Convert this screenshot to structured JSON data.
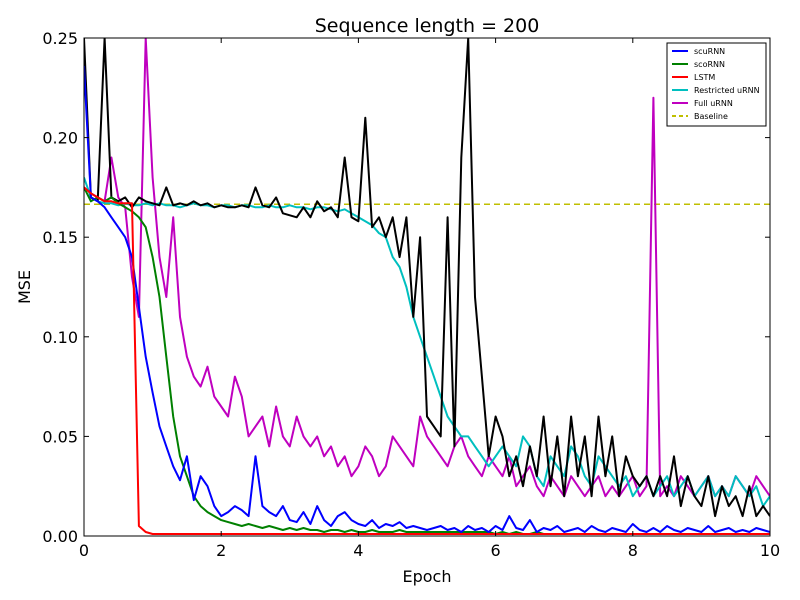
{
  "chart_data": {
    "type": "line",
    "title": "Sequence length = 200",
    "xlabel": "Epoch",
    "ylabel": "MSE",
    "xlim": [
      0,
      10
    ],
    "ylim": [
      0,
      0.25
    ],
    "x_ticks": [
      "0",
      "2",
      "4",
      "6",
      "8",
      "10"
    ],
    "y_ticks": [
      "0.00",
      "0.05",
      "0.10",
      "0.15",
      "0.20",
      "0.25"
    ],
    "grid": false,
    "legend_position": "top-right",
    "x": [
      0,
      0.1,
      0.2,
      0.3,
      0.4,
      0.5,
      0.6,
      0.7,
      0.8,
      0.9,
      1.0,
      1.1,
      1.2,
      1.3,
      1.4,
      1.5,
      1.6,
      1.7,
      1.8,
      1.9,
      2.0,
      2.1,
      2.2,
      2.3,
      2.4,
      2.5,
      2.6,
      2.7,
      2.8,
      2.9,
      3.0,
      3.1,
      3.2,
      3.3,
      3.4,
      3.5,
      3.6,
      3.7,
      3.8,
      3.9,
      4.0,
      4.1,
      4.2,
      4.3,
      4.4,
      4.5,
      4.6,
      4.7,
      4.8,
      4.9,
      5.0,
      5.1,
      5.2,
      5.3,
      5.4,
      5.5,
      5.6,
      5.7,
      5.8,
      5.9,
      6.0,
      6.1,
      6.2,
      6.3,
      6.4,
      6.5,
      6.6,
      6.7,
      6.8,
      6.9,
      7.0,
      7.1,
      7.2,
      7.3,
      7.4,
      7.5,
      7.6,
      7.7,
      7.8,
      7.9,
      8.0,
      8.1,
      8.2,
      8.3,
      8.4,
      8.5,
      8.6,
      8.7,
      8.8,
      8.9,
      9.0,
      9.1,
      9.2,
      9.3,
      9.4,
      9.5,
      9.6,
      9.7,
      9.8,
      9.9,
      10.0
    ],
    "series": [
      {
        "name": "scuRNN",
        "color": "#0000ff",
        "dashed": false,
        "values": [
          0.236,
          0.17,
          0.168,
          0.165,
          0.16,
          0.155,
          0.15,
          0.14,
          0.115,
          0.09,
          0.072,
          0.055,
          0.045,
          0.035,
          0.028,
          0.04,
          0.018,
          0.03,
          0.025,
          0.015,
          0.01,
          0.012,
          0.015,
          0.013,
          0.01,
          0.04,
          0.015,
          0.012,
          0.01,
          0.015,
          0.008,
          0.007,
          0.012,
          0.006,
          0.015,
          0.008,
          0.005,
          0.01,
          0.012,
          0.008,
          0.006,
          0.005,
          0.008,
          0.004,
          0.006,
          0.005,
          0.007,
          0.004,
          0.005,
          0.004,
          0.003,
          0.004,
          0.005,
          0.003,
          0.004,
          0.002,
          0.005,
          0.003,
          0.004,
          0.002,
          0.005,
          0.003,
          0.01,
          0.004,
          0.003,
          0.008,
          0.002,
          0.004,
          0.003,
          0.005,
          0.002,
          0.003,
          0.004,
          0.002,
          0.005,
          0.003,
          0.002,
          0.004,
          0.003,
          0.002,
          0.006,
          0.003,
          0.002,
          0.004,
          0.002,
          0.005,
          0.003,
          0.002,
          0.004,
          0.003,
          0.002,
          0.005,
          0.002,
          0.003,
          0.004,
          0.002,
          0.003,
          0.002,
          0.004,
          0.003,
          0.002
        ]
      },
      {
        "name": "scoRNN",
        "color": "#008000",
        "dashed": false,
        "values": [
          0.175,
          0.168,
          0.17,
          0.168,
          0.17,
          0.167,
          0.165,
          0.163,
          0.16,
          0.155,
          0.14,
          0.12,
          0.09,
          0.06,
          0.04,
          0.03,
          0.02,
          0.015,
          0.012,
          0.01,
          0.008,
          0.007,
          0.006,
          0.005,
          0.006,
          0.005,
          0.004,
          0.005,
          0.004,
          0.003,
          0.004,
          0.003,
          0.004,
          0.003,
          0.003,
          0.002,
          0.003,
          0.003,
          0.002,
          0.003,
          0.002,
          0.002,
          0.003,
          0.002,
          0.002,
          0.002,
          0.003,
          0.002,
          0.002,
          0.002,
          0.002,
          0.002,
          0.002,
          0.002,
          0.002,
          0.002,
          0.002,
          0.002,
          0.002,
          0.002,
          0.001,
          0.002,
          0.001,
          0.002,
          0.001,
          0.001,
          0.002,
          0.001,
          0.001,
          0.001,
          0.001,
          0.001,
          0.001,
          0.001,
          0.001,
          0.001,
          0.001,
          0.001,
          0.001,
          0.001,
          0.001,
          0.001,
          0.001,
          0.001,
          0.001,
          0.001,
          0.001,
          0.001,
          0.001,
          0.001,
          0.001,
          0.001,
          0.001,
          0.001,
          0.001,
          0.001,
          0.001,
          0.001,
          0.001,
          0.001,
          0.001
        ]
      },
      {
        "name": "LSTM",
        "color": "#ff0000",
        "dashed": false,
        "values": [
          0.175,
          0.172,
          0.17,
          0.168,
          0.168,
          0.167,
          0.167,
          0.167,
          0.005,
          0.002,
          0.001,
          0.001,
          0.001,
          0.001,
          0.001,
          0.001,
          0.001,
          0.001,
          0.001,
          0.001,
          0.001,
          0.001,
          0.001,
          0.001,
          0.001,
          0.001,
          0.001,
          0.001,
          0.001,
          0.001,
          0.001,
          0.001,
          0.001,
          0.001,
          0.001,
          0.001,
          0.001,
          0.001,
          0.001,
          0.001,
          0.001,
          0.001,
          0.001,
          0.001,
          0.001,
          0.001,
          0.001,
          0.001,
          0.001,
          0.001,
          0.001,
          0.001,
          0.001,
          0.001,
          0.001,
          0.001,
          0.001,
          0.001,
          0.001,
          0.001,
          0.001,
          0.001,
          0.001,
          0.001,
          0.001,
          0.001,
          0.001,
          0.001,
          0.001,
          0.001,
          0.001,
          0.001,
          0.001,
          0.001,
          0.001,
          0.001,
          0.001,
          0.001,
          0.001,
          0.001,
          0.001,
          0.001,
          0.001,
          0.001,
          0.001,
          0.001,
          0.001,
          0.001,
          0.001,
          0.001,
          0.001,
          0.001,
          0.001,
          0.001,
          0.001,
          0.001,
          0.001,
          0.001,
          0.001,
          0.001,
          0.001
        ]
      },
      {
        "name": "Restricted uRNN",
        "color": "#00bfbf",
        "dashed": false,
        "values": [
          0.18,
          0.17,
          0.168,
          0.167,
          0.167,
          0.166,
          0.167,
          0.166,
          0.166,
          0.167,
          0.166,
          0.167,
          0.166,
          0.166,
          0.165,
          0.166,
          0.167,
          0.166,
          0.166,
          0.165,
          0.166,
          0.166,
          0.165,
          0.166,
          0.166,
          0.165,
          0.165,
          0.166,
          0.165,
          0.165,
          0.166,
          0.165,
          0.165,
          0.164,
          0.165,
          0.165,
          0.164,
          0.163,
          0.164,
          0.162,
          0.16,
          0.158,
          0.156,
          0.152,
          0.15,
          0.14,
          0.135,
          0.125,
          0.11,
          0.1,
          0.09,
          0.08,
          0.07,
          0.06,
          0.055,
          0.05,
          0.05,
          0.045,
          0.04,
          0.035,
          0.04,
          0.045,
          0.04,
          0.035,
          0.05,
          0.045,
          0.03,
          0.025,
          0.04,
          0.035,
          0.03,
          0.045,
          0.04,
          0.03,
          0.025,
          0.04,
          0.035,
          0.03,
          0.025,
          0.03,
          0.02,
          0.025,
          0.03,
          0.02,
          0.025,
          0.03,
          0.02,
          0.025,
          0.03,
          0.02,
          0.025,
          0.03,
          0.02,
          0.025,
          0.02,
          0.03,
          0.025,
          0.02,
          0.025,
          0.015,
          0.02
        ]
      },
      {
        "name": "Full uRNN",
        "color": "#bf00bf",
        "dashed": false,
        "values": [
          0.175,
          0.172,
          0.17,
          0.168,
          0.19,
          0.17,
          0.165,
          0.13,
          0.11,
          0.25,
          0.18,
          0.14,
          0.12,
          0.16,
          0.11,
          0.09,
          0.08,
          0.075,
          0.085,
          0.07,
          0.065,
          0.06,
          0.08,
          0.07,
          0.05,
          0.055,
          0.06,
          0.045,
          0.065,
          0.05,
          0.045,
          0.06,
          0.05,
          0.045,
          0.05,
          0.04,
          0.045,
          0.035,
          0.04,
          0.03,
          0.035,
          0.045,
          0.04,
          0.03,
          0.035,
          0.05,
          0.045,
          0.04,
          0.035,
          0.06,
          0.05,
          0.045,
          0.04,
          0.035,
          0.045,
          0.05,
          0.04,
          0.035,
          0.03,
          0.04,
          0.035,
          0.03,
          0.04,
          0.025,
          0.03,
          0.035,
          0.025,
          0.02,
          0.03,
          0.025,
          0.02,
          0.03,
          0.025,
          0.02,
          0.025,
          0.03,
          0.02,
          0.025,
          0.02,
          0.025,
          0.03,
          0.02,
          0.025,
          0.22,
          0.02,
          0.025,
          0.02,
          0.03,
          0.025,
          0.02,
          0.025,
          0.03,
          0.02,
          0.025,
          0.02,
          0.03,
          0.025,
          0.02,
          0.03,
          0.025,
          0.02
        ]
      },
      {
        "name": "Baseline",
        "color": "#bfbf00",
        "dashed": true,
        "values": [
          0.1665,
          0.1665,
          0.1665,
          0.1665,
          0.1665,
          0.1665,
          0.1665,
          0.1665,
          0.1665,
          0.1665,
          0.1665,
          0.1665,
          0.1665,
          0.1665,
          0.1665,
          0.1665,
          0.1665,
          0.1665,
          0.1665,
          0.1665,
          0.1665,
          0.1665,
          0.1665,
          0.1665,
          0.1665,
          0.1665,
          0.1665,
          0.1665,
          0.1665,
          0.1665,
          0.1665,
          0.1665,
          0.1665,
          0.1665,
          0.1665,
          0.1665,
          0.1665,
          0.1665,
          0.1665,
          0.1665,
          0.1665,
          0.1665,
          0.1665,
          0.1665,
          0.1665,
          0.1665,
          0.1665,
          0.1665,
          0.1665,
          0.1665,
          0.1665,
          0.1665,
          0.1665,
          0.1665,
          0.1665,
          0.1665,
          0.1665,
          0.1665,
          0.1665,
          0.1665,
          0.1665,
          0.1665,
          0.1665,
          0.1665,
          0.1665,
          0.1665,
          0.1665,
          0.1665,
          0.1665,
          0.1665,
          0.1665,
          0.1665,
          0.1665,
          0.1665,
          0.1665,
          0.1665,
          0.1665,
          0.1665,
          0.1665,
          0.1665,
          0.1665,
          0.1665,
          0.1665,
          0.1665,
          0.1665,
          0.1665,
          0.1665,
          0.1665,
          0.1665,
          0.1665,
          0.1665,
          0.1665,
          0.1665,
          0.1665,
          0.1665,
          0.1665,
          0.1665,
          0.1665,
          0.1665,
          0.1665,
          0.1665
        ]
      },
      {
        "name": "",
        "color": "#000000",
        "dashed": false,
        "values": [
          0.25,
          0.17,
          0.168,
          0.25,
          0.17,
          0.168,
          0.17,
          0.165,
          0.17,
          0.168,
          0.167,
          0.166,
          0.175,
          0.166,
          0.167,
          0.166,
          0.168,
          0.166,
          0.167,
          0.165,
          0.166,
          0.165,
          0.165,
          0.166,
          0.165,
          0.175,
          0.166,
          0.165,
          0.17,
          0.162,
          0.161,
          0.16,
          0.165,
          0.16,
          0.168,
          0.163,
          0.165,
          0.16,
          0.19,
          0.16,
          0.158,
          0.21,
          0.155,
          0.16,
          0.15,
          0.16,
          0.14,
          0.16,
          0.11,
          0.15,
          0.06,
          0.055,
          0.05,
          0.16,
          0.045,
          0.19,
          0.25,
          0.12,
          0.08,
          0.04,
          0.06,
          0.05,
          0.03,
          0.04,
          0.025,
          0.045,
          0.03,
          0.06,
          0.025,
          0.05,
          0.02,
          0.06,
          0.03,
          0.05,
          0.02,
          0.06,
          0.03,
          0.05,
          0.02,
          0.04,
          0.03,
          0.025,
          0.03,
          0.02,
          0.03,
          0.02,
          0.04,
          0.015,
          0.03,
          0.02,
          0.015,
          0.03,
          0.01,
          0.025,
          0.015,
          0.02,
          0.01,
          0.025,
          0.01,
          0.015,
          0.01
        ]
      }
    ]
  }
}
